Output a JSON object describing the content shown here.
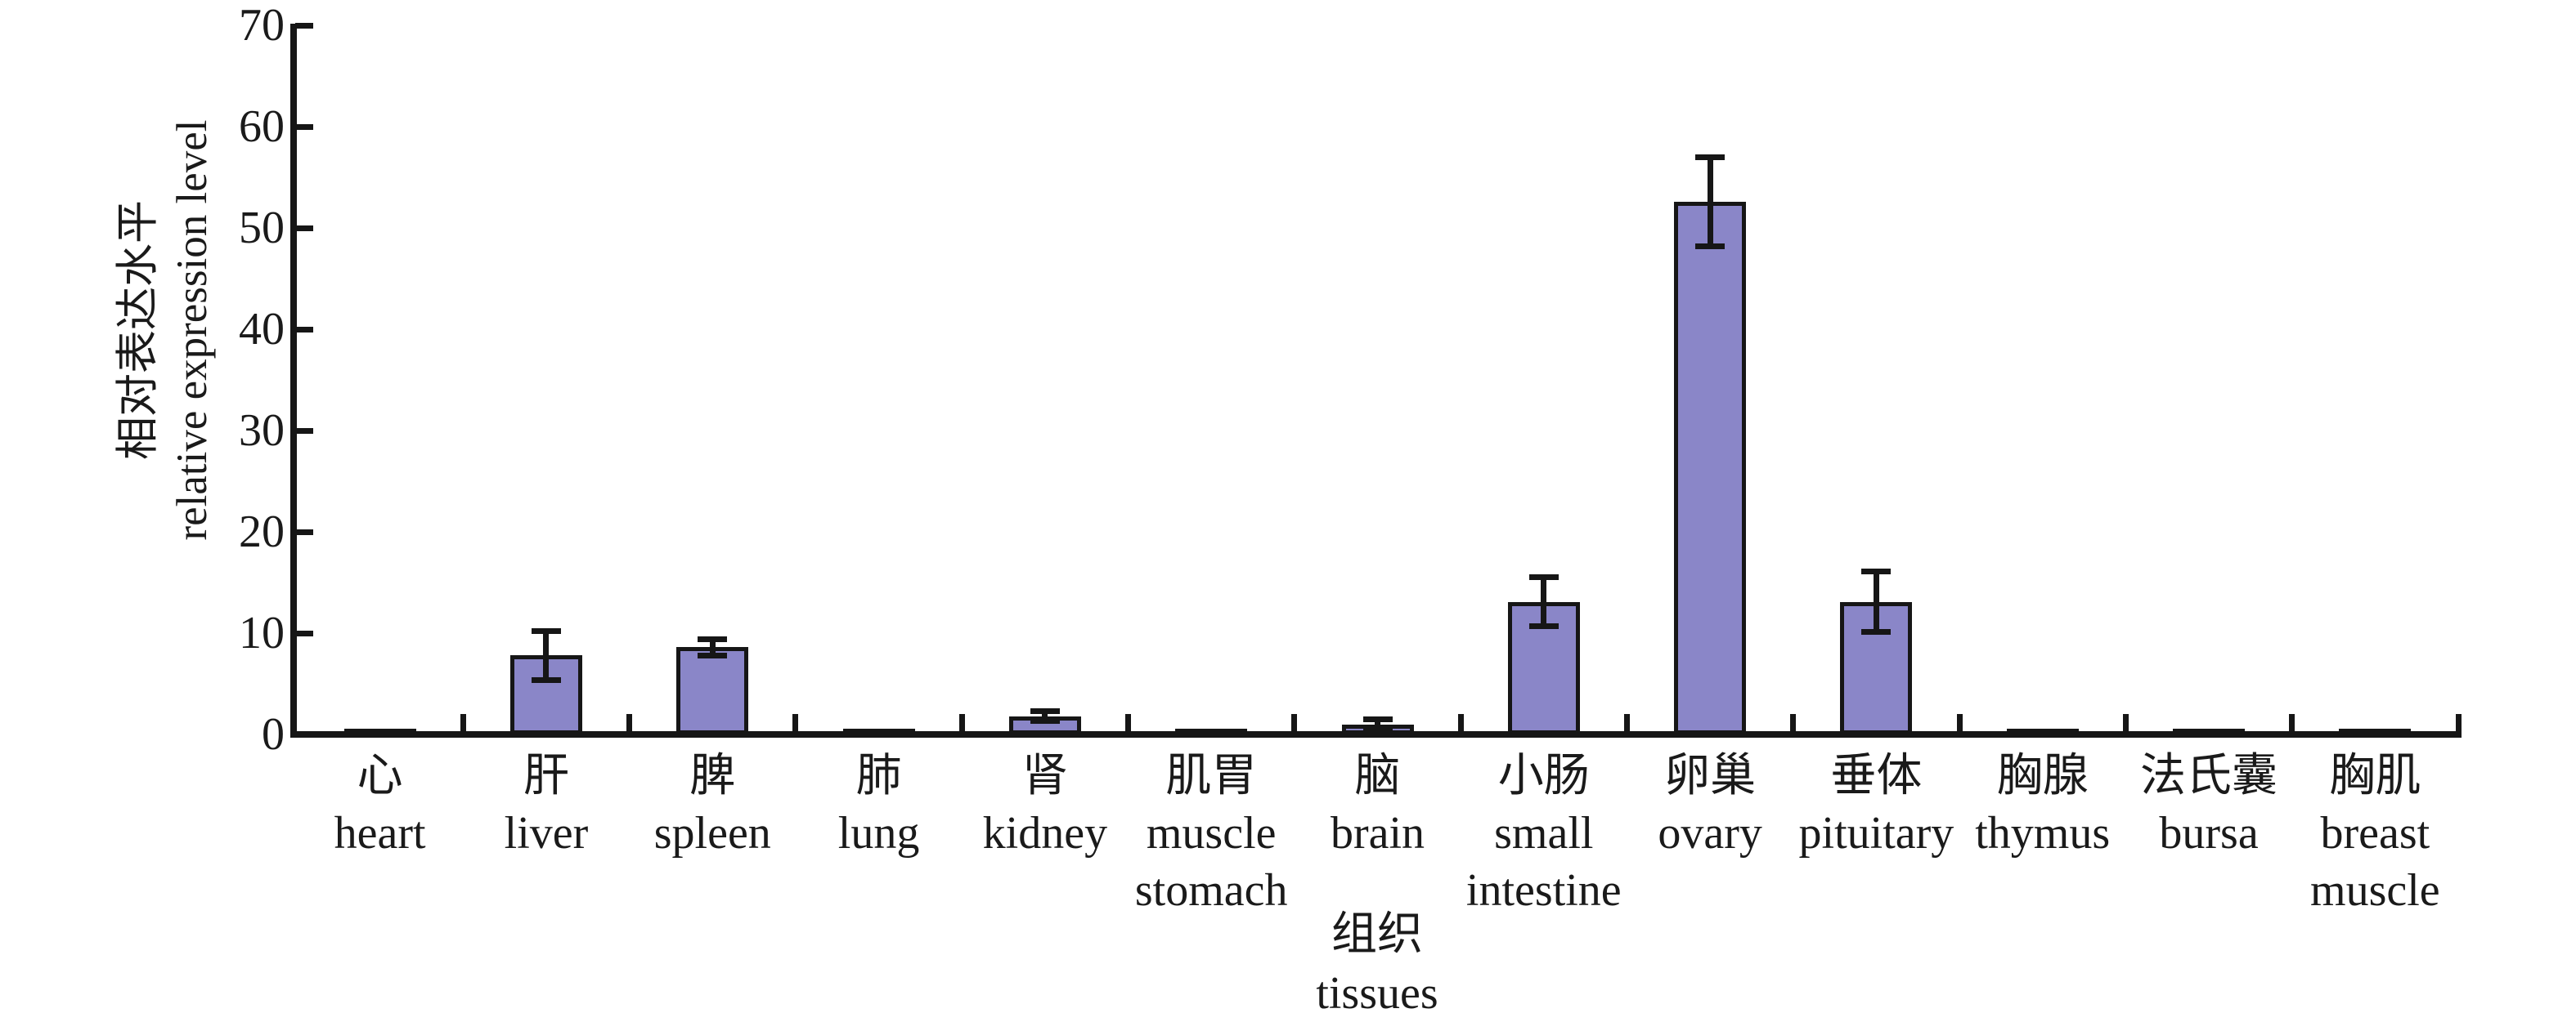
{
  "chart_data": {
    "type": "bar",
    "title": "",
    "ylabel_cn": "相对表达水平",
    "ylabel_en": "relative expression level",
    "xlabel_cn": "组织",
    "xlabel_en": "tissues",
    "ylim": [
      0,
      70
    ],
    "ytick_step": 10,
    "ytick_labels": [
      0,
      10,
      20,
      30,
      40,
      50,
      60,
      70
    ],
    "grid": false,
    "legend": "none",
    "bar_color": "#8a86c8",
    "bar_border_color": "#161616",
    "axis_color": "#161616",
    "categories": [
      {
        "cn": "心",
        "en": [
          "heart"
        ]
      },
      {
        "cn": "肝",
        "en": [
          "liver"
        ]
      },
      {
        "cn": "脾",
        "en": [
          "spleen"
        ]
      },
      {
        "cn": "肺",
        "en": [
          "lung"
        ]
      },
      {
        "cn": "肾",
        "en": [
          "kidney"
        ]
      },
      {
        "cn": "肌胃",
        "en": [
          "muscle",
          "stomach"
        ]
      },
      {
        "cn": "脑",
        "en": [
          "brain"
        ]
      },
      {
        "cn": "小肠",
        "en": [
          "small",
          "intestine"
        ]
      },
      {
        "cn": "卵巢",
        "en": [
          "ovary"
        ]
      },
      {
        "cn": "垂体",
        "en": [
          "pituitary"
        ]
      },
      {
        "cn": "胸腺",
        "en": [
          "thymus"
        ]
      },
      {
        "cn": "法氏囊",
        "en": [
          "bursa"
        ]
      },
      {
        "cn": "胸肌",
        "en": [
          "breast",
          "muscle"
        ]
      }
    ],
    "values": [
      0.35,
      7.8,
      8.6,
      0.35,
      1.8,
      0.35,
      1.0,
      13.1,
      52.6,
      13.1,
      0.35,
      0.35,
      0.35
    ],
    "errors": [
      0,
      2.4,
      0.8,
      0,
      0.5,
      0,
      0.5,
      2.4,
      4.4,
      3.0,
      0,
      0,
      0
    ]
  }
}
